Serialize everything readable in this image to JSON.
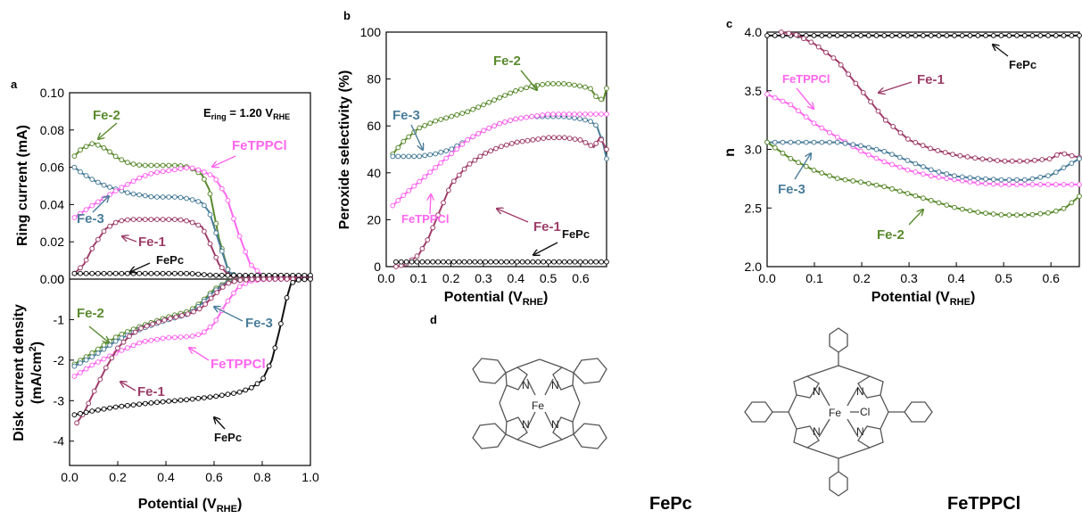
{
  "colors": {
    "Fe-1": "#9e3d6a",
    "Fe-2": "#5a8a2e",
    "Fe-3": "#4a7d9a",
    "FeTPPCl": "#ff66ee",
    "FePc": "#111111"
  },
  "chart_data": [
    {
      "id": "a",
      "panel": "a",
      "type": "line",
      "xlabel": "Potential (V",
      "xlabel_sub": "RHE",
      "xlabel_end": ")",
      "xlim": [
        0.0,
        1.0
      ],
      "x_ticks": [
        "0.0",
        "0.2",
        "0.4",
        "0.6",
        "0.8",
        "1.0"
      ],
      "top": {
        "ylabel": "Ring current (mA)",
        "ylim": [
          0.0,
          0.1
        ],
        "y_ticks": [
          "0.00",
          "0.02",
          "0.04",
          "0.06",
          "0.08",
          "0.10"
        ],
        "series": [
          {
            "name": "Fe-2",
            "x": [
              0.02,
              0.05,
              0.1,
              0.15,
              0.2,
              0.25,
              0.3,
              0.35,
              0.4,
              0.45,
              0.5,
              0.55,
              0.58,
              0.62,
              0.66,
              0.7,
              0.8,
              1.0
            ],
            "y": [
              0.066,
              0.07,
              0.073,
              0.07,
              0.065,
              0.062,
              0.061,
              0.061,
              0.061,
              0.061,
              0.06,
              0.056,
              0.048,
              0.022,
              0.004,
              0.001,
              0.001,
              0.001
            ]
          },
          {
            "name": "Fe-3",
            "x": [
              0.02,
              0.05,
              0.1,
              0.15,
              0.2,
              0.25,
              0.3,
              0.35,
              0.4,
              0.45,
              0.5,
              0.55,
              0.58,
              0.62,
              0.66,
              0.7,
              0.8,
              1.0
            ],
            "y": [
              0.06,
              0.057,
              0.053,
              0.05,
              0.048,
              0.046,
              0.045,
              0.044,
              0.044,
              0.044,
              0.043,
              0.041,
              0.036,
              0.02,
              0.004,
              0.001,
              0.001,
              0.001
            ]
          },
          {
            "name": "FeTPPCl",
            "x": [
              0.02,
              0.1,
              0.2,
              0.3,
              0.35,
              0.4,
              0.45,
              0.5,
              0.55,
              0.6,
              0.65,
              0.7,
              0.75,
              0.8,
              0.85,
              1.0
            ],
            "y": [
              0.033,
              0.04,
              0.048,
              0.055,
              0.057,
              0.058,
              0.059,
              0.06,
              0.058,
              0.055,
              0.045,
              0.025,
              0.008,
              0.002,
              0.001,
              0.001
            ]
          },
          {
            "name": "Fe-1",
            "x": [
              0.02,
              0.06,
              0.1,
              0.15,
              0.2,
              0.25,
              0.3,
              0.35,
              0.4,
              0.45,
              0.5,
              0.55,
              0.58,
              0.62,
              0.66,
              0.7,
              0.8,
              1.0
            ],
            "y": [
              0.003,
              0.008,
              0.018,
              0.027,
              0.031,
              0.032,
              0.032,
              0.032,
              0.032,
              0.032,
              0.031,
              0.028,
              0.02,
              0.008,
              0.002,
              0.001,
              0.001,
              0.001
            ]
          },
          {
            "name": "FePc",
            "x": [
              0.02,
              0.1,
              0.2,
              0.3,
              0.4,
              0.5,
              0.6,
              0.7,
              0.8,
              0.9,
              1.0
            ],
            "y": [
              0.003,
              0.003,
              0.003,
              0.003,
              0.003,
              0.003,
              0.002,
              0.002,
              0.002,
              0.002,
              0.002
            ]
          }
        ]
      },
      "bottom": {
        "ylabel": "Disk current density",
        "ylabel2": "(mA/cm",
        "ylabel2_sup": "2",
        "ylabel2_end": ")",
        "ylim": [
          -4.6,
          0.0
        ],
        "y_ticks": [
          "-4",
          "-3",
          "-2",
          "-1",
          "0"
        ],
        "series": [
          {
            "name": "Fe-2",
            "x": [
              0.02,
              0.1,
              0.2,
              0.3,
              0.4,
              0.5,
              0.55,
              0.6,
              0.65,
              0.7,
              0.75,
              0.8,
              0.9,
              1.0
            ],
            "y": [
              -2.1,
              -1.8,
              -1.4,
              -1.15,
              -0.95,
              -0.78,
              -0.55,
              -0.25,
              -0.08,
              -0.02,
              -0.01,
              0.0,
              0.0,
              0.0
            ]
          },
          {
            "name": "Fe-3",
            "x": [
              0.02,
              0.1,
              0.2,
              0.3,
              0.4,
              0.5,
              0.55,
              0.6,
              0.65,
              0.7,
              0.75,
              0.8,
              0.9,
              1.0
            ],
            "y": [
              -2.15,
              -1.9,
              -1.5,
              -1.22,
              -1.02,
              -0.85,
              -0.6,
              -0.3,
              -0.1,
              -0.03,
              -0.01,
              0.0,
              0.0,
              0.0
            ]
          },
          {
            "name": "FeTPPCl",
            "x": [
              0.02,
              0.1,
              0.2,
              0.3,
              0.4,
              0.5,
              0.55,
              0.6,
              0.65,
              0.7,
              0.75,
              0.8,
              0.85,
              0.9,
              1.0
            ],
            "y": [
              -2.4,
              -2.1,
              -1.8,
              -1.55,
              -1.45,
              -1.42,
              -1.35,
              -1.1,
              -0.6,
              -0.2,
              -0.05,
              -0.01,
              0.0,
              0.0,
              0.0
            ]
          },
          {
            "name": "Fe-1",
            "x": [
              0.03,
              0.06,
              0.1,
              0.15,
              0.2,
              0.25,
              0.3,
              0.4,
              0.5,
              0.55,
              0.6,
              0.65,
              0.7,
              0.75,
              0.8,
              0.9,
              1.0
            ],
            "y": [
              -3.55,
              -3.3,
              -2.8,
              -2.2,
              -1.7,
              -1.4,
              -1.2,
              -1.0,
              -0.85,
              -0.7,
              -0.4,
              -0.12,
              -0.03,
              -0.01,
              0.0,
              0.0,
              0.0
            ]
          },
          {
            "name": "FePc",
            "x": [
              0.02,
              0.1,
              0.2,
              0.3,
              0.4,
              0.5,
              0.6,
              0.7,
              0.75,
              0.8,
              0.84,
              0.87,
              0.9,
              0.92,
              0.95,
              1.0
            ],
            "y": [
              -3.35,
              -3.25,
              -3.15,
              -3.08,
              -3.02,
              -2.97,
              -2.9,
              -2.8,
              -2.7,
              -2.5,
              -2.0,
              -1.3,
              -0.5,
              -0.1,
              -0.02,
              0.0
            ]
          }
        ]
      },
      "annotations": {
        "ering": "E",
        "ering_sub": "ring",
        "ering_rest": " = 1.20 V",
        "ering_sub2": "RHE",
        "fe2_top": "Fe-2",
        "fetppcl_top": "FeTPPCl",
        "fe3_top": "Fe-3",
        "fe1_top": "Fe-1",
        "fepc_top": "FePc",
        "fe2_bot": "Fe-2",
        "fe3_bot": "Fe-3",
        "fetppcl_bot": "FeTPPCl",
        "fe1_bot": "Fe-1",
        "fepc_bot": "FePc"
      }
    },
    {
      "id": "b",
      "panel": "b",
      "type": "line",
      "xlabel": "Potential (V",
      "xlabel_sub": "RHE",
      "xlabel_end": ")",
      "ylabel": "Peroxide selectivity (%)",
      "xlim": [
        0.0,
        0.68
      ],
      "ylim": [
        0,
        100
      ],
      "x_ticks": [
        "0.0",
        "0.1",
        "0.2",
        "0.3",
        "0.4",
        "0.5",
        "0.6"
      ],
      "y_ticks": [
        "0",
        "20",
        "40",
        "60",
        "80",
        "100"
      ],
      "series": [
        {
          "name": "Fe-2",
          "x": [
            0.02,
            0.05,
            0.1,
            0.15,
            0.2,
            0.25,
            0.3,
            0.35,
            0.4,
            0.45,
            0.5,
            0.55,
            0.6,
            0.63,
            0.65,
            0.67,
            0.68
          ],
          "y": [
            48,
            53,
            59,
            62,
            64,
            66,
            69,
            72,
            75,
            77,
            78,
            78,
            77,
            76,
            72,
            71,
            76
          ]
        },
        {
          "name": "Fe-3",
          "x": [
            0.02,
            0.05,
            0.1,
            0.15,
            0.2,
            0.25,
            0.3,
            0.35,
            0.4,
            0.45,
            0.5,
            0.55,
            0.6,
            0.63,
            0.65,
            0.67,
            0.68
          ],
          "y": [
            47,
            47,
            47,
            48,
            50,
            54,
            58,
            61,
            63,
            64,
            64,
            64,
            63,
            62,
            60,
            52,
            46
          ]
        },
        {
          "name": "FeTPPCl",
          "x": [
            0.02,
            0.05,
            0.1,
            0.15,
            0.2,
            0.25,
            0.3,
            0.35,
            0.4,
            0.45,
            0.5,
            0.55,
            0.6,
            0.65,
            0.68
          ],
          "y": [
            26,
            30,
            36,
            42,
            48,
            54,
            58,
            61,
            63,
            64,
            65,
            65,
            65,
            65,
            65
          ]
        },
        {
          "name": "Fe-1",
          "x": [
            0.03,
            0.06,
            0.1,
            0.13,
            0.16,
            0.2,
            0.25,
            0.3,
            0.35,
            0.4,
            0.45,
            0.5,
            0.55,
            0.6,
            0.64,
            0.66,
            0.68
          ],
          "y": [
            0,
            1,
            5,
            12,
            22,
            35,
            43,
            48,
            51,
            53,
            54,
            55,
            55,
            54,
            51,
            55,
            50
          ]
        },
        {
          "name": "FePc",
          "x": [
            0.03,
            0.1,
            0.2,
            0.3,
            0.4,
            0.5,
            0.6,
            0.68
          ],
          "y": [
            2,
            2,
            2,
            2,
            2,
            2,
            2,
            2
          ]
        }
      ],
      "annotations": {
        "fe2": "Fe-2",
        "fe3": "Fe-3",
        "fetppcl": "FeTPPCl",
        "fe1": "Fe-1",
        "fepc": "FePc"
      }
    },
    {
      "id": "c",
      "panel": "c",
      "type": "line",
      "xlabel": "Potential (V",
      "xlabel_sub": "RHE",
      "xlabel_end": ")",
      "ylabel": "n",
      "xlim": [
        0.0,
        0.66
      ],
      "ylim": [
        2.0,
        4.0
      ],
      "x_ticks": [
        "0.0",
        "0.1",
        "0.2",
        "0.3",
        "0.4",
        "0.5",
        "0.6"
      ],
      "y_ticks": [
        "2.0",
        "2.5",
        "3.0",
        "3.5",
        "4.0"
      ],
      "series": [
        {
          "name": "FePc",
          "x": [
            0.0,
            0.1,
            0.2,
            0.3,
            0.4,
            0.5,
            0.6,
            0.66
          ],
          "y": [
            3.97,
            3.97,
            3.97,
            3.97,
            3.97,
            3.97,
            3.97,
            3.97
          ]
        },
        {
          "name": "Fe-1",
          "x": [
            0.03,
            0.06,
            0.1,
            0.15,
            0.2,
            0.25,
            0.3,
            0.35,
            0.4,
            0.45,
            0.5,
            0.55,
            0.6,
            0.62,
            0.64,
            0.66
          ],
          "y": [
            4.0,
            3.98,
            3.9,
            3.75,
            3.5,
            3.25,
            3.08,
            3.0,
            2.95,
            2.92,
            2.9,
            2.9,
            2.92,
            2.97,
            2.95,
            2.93
          ]
        },
        {
          "name": "FeTPPCl",
          "x": [
            0.0,
            0.05,
            0.1,
            0.15,
            0.2,
            0.25,
            0.3,
            0.35,
            0.4,
            0.45,
            0.5,
            0.55,
            0.6,
            0.66
          ],
          "y": [
            3.47,
            3.38,
            3.22,
            3.1,
            2.98,
            2.89,
            2.82,
            2.77,
            2.74,
            2.71,
            2.7,
            2.7,
            2.7,
            2.7
          ]
        },
        {
          "name": "Fe-3",
          "x": [
            0.0,
            0.05,
            0.1,
            0.15,
            0.2,
            0.25,
            0.3,
            0.35,
            0.4,
            0.45,
            0.5,
            0.55,
            0.6,
            0.66
          ],
          "y": [
            3.06,
            3.06,
            3.06,
            3.06,
            3.03,
            2.98,
            2.9,
            2.82,
            2.77,
            2.75,
            2.74,
            2.74,
            2.78,
            2.92
          ]
        },
        {
          "name": "Fe-2",
          "x": [
            0.0,
            0.05,
            0.1,
            0.15,
            0.2,
            0.25,
            0.3,
            0.35,
            0.4,
            0.45,
            0.5,
            0.55,
            0.6,
            0.63,
            0.66
          ],
          "y": [
            3.06,
            2.92,
            2.82,
            2.75,
            2.72,
            2.68,
            2.62,
            2.56,
            2.5,
            2.46,
            2.44,
            2.44,
            2.46,
            2.5,
            2.6
          ]
        }
      ],
      "annotations": {
        "fepc": "FePc",
        "fe1": "Fe-1",
        "fetppcl": "FeTPPCl",
        "fe3": "Fe-3",
        "fe2": "Fe-2"
      }
    }
  ],
  "panel_d": {
    "letter": "d",
    "mol1_label": "FePc",
    "mol2_label": "FeTPPCl",
    "atoms": {
      "fe": "Fe",
      "n": "N",
      "cl": "Cl"
    }
  }
}
